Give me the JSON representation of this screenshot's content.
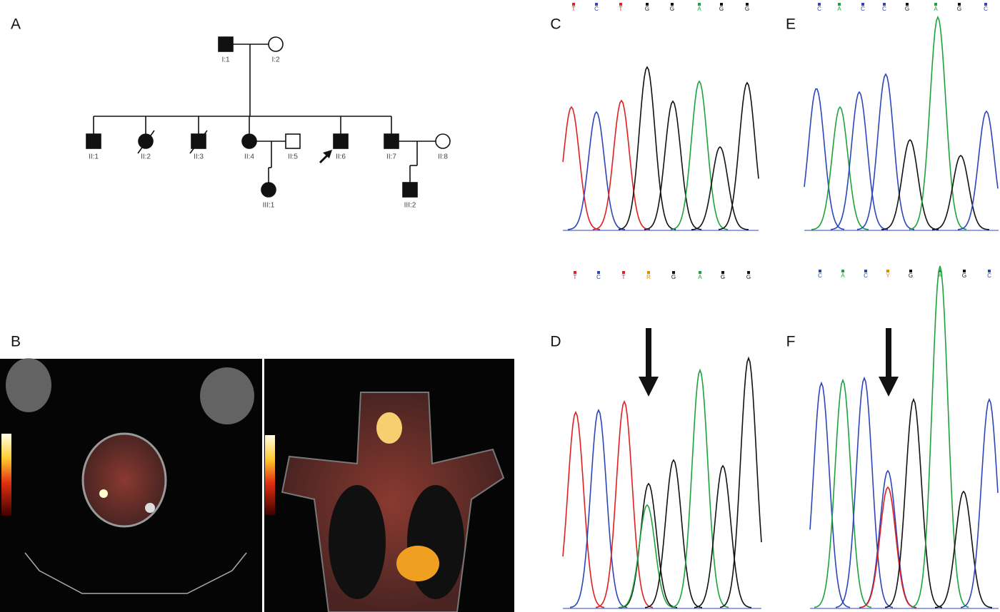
{
  "panel_labels": [
    "A",
    "B",
    "C",
    "D",
    "E",
    "F"
  ],
  "pedigree": {
    "individuals": [
      "I:1",
      "I:2",
      "II:1",
      "II:2",
      "II:3",
      "II:4",
      "II:5",
      "II:6",
      "II:7",
      "II:8",
      "III:1",
      "III:2"
    ]
  },
  "sequences": {
    "C": [
      "T",
      "C",
      "T",
      "G",
      "G",
      "A",
      "G",
      "G"
    ],
    "D": [
      "T",
      "C",
      "T",
      "R",
      "G",
      "A",
      "G",
      "G"
    ],
    "E": [
      "C",
      "A",
      "C",
      "C",
      "G",
      "A",
      "G",
      "C"
    ],
    "F": [
      "C",
      "A",
      "C",
      "Y",
      "G",
      "A",
      "G",
      "C"
    ]
  },
  "base_colors": {
    "A": "#1ea33c",
    "C": "#2c46b8",
    "G": "#111111",
    "T": "#e02020",
    "R": "#e08a00",
    "Y": "#e08a00"
  }
}
